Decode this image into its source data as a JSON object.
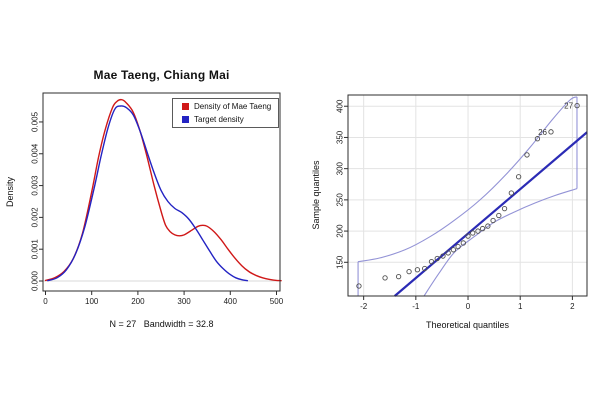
{
  "figure": {
    "background": "#ffffff"
  },
  "chart_data": [
    {
      "type": "line",
      "variant": "kernel-density",
      "title": "Mae Taeng, Chiang Mai",
      "xlabel": "N = 27   Bandwidth = 32.8",
      "ylabel": "Density",
      "xlim": [
        -5.4,
        507.6
      ],
      "ylim": [
        -0.000314,
        0.00591
      ],
      "xticks": [
        0,
        100,
        200,
        300,
        400,
        500
      ],
      "xtick_labels": [
        "0",
        "100",
        "200",
        "300",
        "400",
        "500"
      ],
      "yticks": [
        0,
        0.001,
        0.002,
        0.003,
        0.004,
        0.005
      ],
      "ytick_labels": [
        "0.000",
        "0.001",
        "0.002",
        "0.003",
        "0.004",
        "0.005"
      ],
      "grid": false,
      "baseline": {
        "y": 0,
        "color": "#dadada"
      },
      "legend": {
        "position": "top-right",
        "entries": [
          {
            "label": "Density of Mae Taeng",
            "color": "#d01818"
          },
          {
            "label": "Target density",
            "color": "#2323c3"
          }
        ]
      },
      "series": [
        {
          "name": "Density of Mae Taeng",
          "color": "#d01818",
          "points": [
            [
              0,
              2e-05
            ],
            [
              20,
              0.0001
            ],
            [
              40,
              0.0003
            ],
            [
              60,
              0.0007
            ],
            [
              80,
              0.0015
            ],
            [
              100,
              0.0028
            ],
            [
              115,
              0.0039
            ],
            [
              130,
              0.0048
            ],
            [
              145,
              0.00545
            ],
            [
              155,
              0.00565
            ],
            [
              165,
              0.0057
            ],
            [
              175,
              0.0056
            ],
            [
              190,
              0.0053
            ],
            [
              205,
              0.0047
            ],
            [
              220,
              0.0039
            ],
            [
              235,
              0.003
            ],
            [
              250,
              0.0022
            ],
            [
              260,
              0.00175
            ],
            [
              270,
              0.00155
            ],
            [
              280,
              0.00145
            ],
            [
              290,
              0.00142
            ],
            [
              300,
              0.00145
            ],
            [
              315,
              0.00158
            ],
            [
              330,
              0.00172
            ],
            [
              340,
              0.00175
            ],
            [
              350,
              0.00172
            ],
            [
              365,
              0.00155
            ],
            [
              380,
              0.0013
            ],
            [
              395,
              0.001
            ],
            [
              410,
              0.00072
            ],
            [
              425,
              0.00048
            ],
            [
              440,
              0.0003
            ],
            [
              455,
              0.00018
            ],
            [
              470,
              0.0001
            ],
            [
              485,
              5e-05
            ],
            [
              500,
              2e-05
            ],
            [
              510,
              1e-05
            ]
          ]
        },
        {
          "name": "Target density",
          "color": "#2323c3",
          "points": [
            [
              5,
              1e-05
            ],
            [
              25,
              0.0001
            ],
            [
              45,
              0.00035
            ],
            [
              65,
              0.00085
            ],
            [
              85,
              0.0017
            ],
            [
              105,
              0.0029
            ],
            [
              120,
              0.0039
            ],
            [
              135,
              0.0048
            ],
            [
              150,
              0.0054
            ],
            [
              163,
              0.0055
            ],
            [
              175,
              0.00545
            ],
            [
              190,
              0.00522
            ],
            [
              205,
              0.0047
            ],
            [
              220,
              0.00405
            ],
            [
              235,
              0.0034
            ],
            [
              250,
              0.00285
            ],
            [
              265,
              0.0025
            ],
            [
              280,
              0.00228
            ],
            [
              295,
              0.00215
            ],
            [
              310,
              0.00195
            ],
            [
              325,
              0.00165
            ],
            [
              340,
              0.0013
            ],
            [
              355,
              0.00095
            ],
            [
              370,
              0.00062
            ],
            [
              385,
              0.00038
            ],
            [
              400,
              0.0002
            ],
            [
              412,
              0.0001
            ],
            [
              425,
              4e-05
            ],
            [
              437,
              1e-05
            ]
          ]
        }
      ]
    },
    {
      "type": "scatter",
      "variant": "qq-plot",
      "title": "",
      "xlabel": "Theoretical quantiles",
      "ylabel": "Sample quantiles",
      "xlim": [
        -2.3,
        2.28
      ],
      "ylim": [
        96,
        418
      ],
      "xticks": [
        -2,
        -1,
        0,
        1,
        2
      ],
      "xtick_labels": [
        "-2",
        "-1",
        "0",
        "1",
        "2"
      ],
      "yticks": [
        150,
        200,
        250,
        300,
        350,
        400
      ],
      "ytick_labels": [
        "150",
        "200",
        "250",
        "300",
        "350",
        "400"
      ],
      "grid": true,
      "grid_color": "#e3e3e3",
      "point_style": {
        "color": "#505050",
        "radius": 2.2
      },
      "points": [
        [
          -2.09,
          112
        ],
        [
          -1.59,
          125
        ],
        [
          -1.33,
          127
        ],
        [
          -1.13,
          135
        ],
        [
          -0.97,
          138
        ],
        [
          -0.83,
          140
        ],
        [
          -0.7,
          151
        ],
        [
          -0.59,
          156
        ],
        [
          -0.48,
          160
        ],
        [
          -0.38,
          165
        ],
        [
          -0.28,
          170
        ],
        [
          -0.19,
          175
        ],
        [
          -0.09,
          181
        ],
        [
          0,
          192
        ],
        [
          0.09,
          197
        ],
        [
          0.19,
          200
        ],
        [
          0.28,
          204
        ],
        [
          0.38,
          208
        ],
        [
          0.48,
          217
        ],
        [
          0.59,
          225
        ],
        [
          0.7,
          236
        ],
        [
          0.83,
          261
        ],
        [
          0.97,
          287
        ],
        [
          1.13,
          322
        ],
        [
          1.33,
          348
        ],
        [
          1.59,
          359
        ],
        [
          2.09,
          401
        ]
      ],
      "point_labels": [
        {
          "text": "26",
          "x": 1.59,
          "y": 359
        },
        {
          "text": "27",
          "x": 2.09,
          "y": 401
        }
      ],
      "reference_line": {
        "intercept": 196,
        "slope": 71.2,
        "color": "#2b2bb5",
        "width": 2.2
      },
      "envelope": {
        "color": "#9393d6",
        "upper": [
          [
            -2.107,
            151
          ],
          [
            -1.686,
            157
          ],
          [
            -1.207,
            170
          ],
          [
            -0.728,
            191
          ],
          [
            -0.249,
            218
          ],
          [
            0.23,
            250
          ],
          [
            0.709,
            289
          ],
          [
            1.188,
            334
          ],
          [
            1.609,
            378
          ],
          [
            1.954,
            410
          ],
          [
            2.088,
            415
          ]
        ],
        "lower": [
          [
            -0.843,
            96
          ],
          [
            -0.536,
            135
          ],
          [
            -0.249,
            167
          ],
          [
            0.134,
            192
          ],
          [
            0.517,
            215
          ],
          [
            0.9,
            231
          ],
          [
            1.283,
            245
          ],
          [
            1.667,
            257
          ],
          [
            2.088,
            268
          ]
        ]
      }
    }
  ]
}
